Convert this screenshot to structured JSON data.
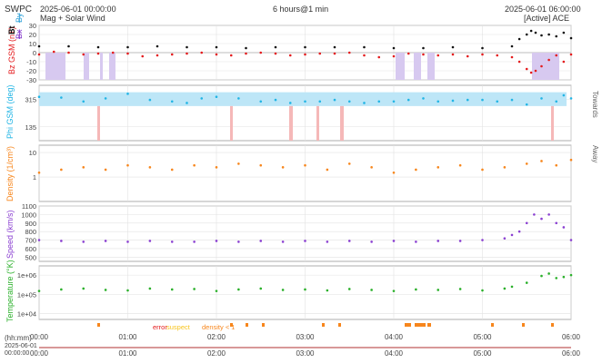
{
  "header": {
    "org": "SWPC",
    "start": "2025-06-01 00:00:00",
    "subtitle": "Mag + Solar Wind",
    "span": "6 hours@1 min",
    "end": "2025-06-01 06:00:00",
    "source": "[Active] ACE"
  },
  "colors": {
    "bz": "#e41a1c",
    "bt": "#111111",
    "bx": "#7e2ec9",
    "by": "#2ca0d8",
    "phi": "#22b5e5",
    "phi_band": "#bde6f7",
    "towards": "#f5b8b8",
    "density": "#f7861c",
    "speed": "#8a3fd1",
    "temperature": "#2ab02a",
    "bz_south": "#d7c9f0",
    "grid": "#e2e2e2",
    "axis": "#9a9a9a"
  },
  "legend": {
    "error": "error",
    "suspect": "suspect",
    "density": "density < 1",
    "error_color": "#e41a1c",
    "suspect_color": "#f7c41c",
    "density_color": "#f7861c"
  },
  "time_axis": {
    "label": "(hh:mm)",
    "ticks": [
      "00:00",
      "01:00",
      "02:00",
      "03:00",
      "04:00",
      "05:00",
      "06:00"
    ],
    "date_line1": "2025-06-01",
    "date_line2": "00:00:00"
  },
  "chart_data": [
    {
      "type": "scatter",
      "panel": "mag",
      "ylabel_parts": [
        "Bz GSM (nT)",
        "Bt",
        "Bx",
        "By"
      ],
      "yticks": [
        30,
        20,
        10,
        0,
        -10,
        -20,
        -30
      ],
      "ylim": [
        -30,
        30
      ],
      "x_unit": "minutes since 2025-06-01 00:00",
      "series": [
        {
          "name": "Bt",
          "x": [
            0,
            20,
            40,
            60,
            80,
            100,
            120,
            140,
            160,
            180,
            200,
            220,
            240,
            260,
            280,
            300,
            320,
            325,
            330,
            333,
            336,
            340,
            345,
            350,
            355,
            360
          ],
          "y": [
            7,
            7,
            6,
            6,
            7,
            6,
            6,
            5,
            6,
            6,
            6,
            6,
            5,
            5,
            6,
            5,
            7,
            15,
            20,
            24,
            22,
            19,
            20,
            18,
            22,
            16
          ]
        },
        {
          "name": "Bz GSM",
          "x": [
            0,
            10,
            20,
            30,
            40,
            50,
            60,
            70,
            80,
            90,
            100,
            110,
            120,
            130,
            140,
            150,
            160,
            170,
            180,
            190,
            200,
            210,
            220,
            230,
            240,
            250,
            260,
            270,
            280,
            290,
            300,
            310,
            320,
            325,
            330,
            333,
            336,
            340,
            345,
            350,
            355,
            360
          ],
          "y": [
            -2,
            1,
            0,
            -2,
            -1,
            0,
            -1,
            -4,
            -3,
            -2,
            -1,
            0,
            -2,
            -3,
            -1,
            0,
            -1,
            -3,
            -2,
            -1,
            -1,
            0,
            -3,
            -5,
            -4,
            -1,
            -2,
            -3,
            -2,
            -4,
            -2,
            -3,
            -5,
            -10,
            -18,
            -22,
            -20,
            -15,
            -8,
            -3,
            -10,
            -2
          ]
        }
      ]
    },
    {
      "type": "scatter",
      "panel": "phi",
      "ylabel": "Phi GSM (deg)",
      "side_labels": [
        "Away",
        "Towards"
      ],
      "yticks": [
        315,
        135
      ],
      "ylim": [
        45,
        405
      ],
      "series": [
        {
          "name": "Phi GSM",
          "x": [
            0,
            15,
            30,
            45,
            60,
            75,
            90,
            100,
            110,
            120,
            135,
            150,
            160,
            170,
            180,
            190,
            200,
            210,
            220,
            230,
            240,
            250,
            260,
            270,
            280,
            290,
            300,
            310,
            320,
            330,
            340,
            350,
            355,
            360
          ],
          "y": [
            330,
            325,
            300,
            320,
            350,
            310,
            300,
            290,
            320,
            330,
            320,
            300,
            310,
            290,
            300,
            300,
            310,
            300,
            290,
            300,
            300,
            310,
            320,
            300,
            305,
            310,
            310,
            300,
            310,
            280,
            320,
            300,
            340,
            320
          ]
        }
      ]
    },
    {
      "type": "scatter",
      "panel": "density",
      "ylabel": "Density (1/cm³)",
      "yscale": "log",
      "yticks": [
        10,
        1
      ],
      "ylim": [
        0.1,
        20
      ],
      "series": [
        {
          "name": "Density",
          "x": [
            0,
            15,
            30,
            45,
            60,
            75,
            90,
            105,
            120,
            135,
            150,
            165,
            180,
            195,
            210,
            225,
            240,
            255,
            270,
            285,
            300,
            315,
            330,
            340,
            350,
            360
          ],
          "y": [
            1.5,
            2.0,
            2.5,
            2.0,
            3.0,
            2.5,
            2.0,
            3.0,
            2.5,
            3.5,
            3.0,
            2.5,
            3.0,
            2.0,
            3.5,
            2.5,
            1.5,
            2.0,
            2.5,
            3.0,
            2.0,
            2.5,
            3.5,
            4.5,
            3.0,
            5.0
          ]
        }
      ]
    },
    {
      "type": "scatter",
      "panel": "speed",
      "ylabel": "Speed (km/s)",
      "yticks": [
        1100,
        1000,
        900,
        800,
        700,
        600,
        500
      ],
      "ylim": [
        450,
        1100
      ],
      "series": [
        {
          "name": "Speed",
          "x": [
            0,
            15,
            30,
            45,
            60,
            75,
            90,
            105,
            120,
            135,
            150,
            165,
            180,
            195,
            210,
            225,
            240,
            255,
            270,
            285,
            300,
            315,
            320,
            325,
            330,
            335,
            340,
            345,
            350,
            355,
            360
          ],
          "y": [
            700,
            690,
            680,
            690,
            680,
            690,
            680,
            680,
            690,
            680,
            690,
            680,
            690,
            680,
            690,
            680,
            690,
            680,
            690,
            690,
            700,
            720,
            760,
            800,
            900,
            1000,
            950,
            1000,
            900,
            850,
            700
          ]
        }
      ]
    },
    {
      "type": "scatter",
      "panel": "temperature",
      "ylabel": "Temperature (°K)",
      "yscale": "log",
      "yticks_labels": [
        "1e+06",
        "1e+05",
        "1e+04"
      ],
      "yticks": [
        1000000,
        100000,
        10000
      ],
      "ylim": [
        5000,
        3000000
      ],
      "series": [
        {
          "name": "Temperature",
          "x": [
            0,
            15,
            30,
            45,
            60,
            75,
            90,
            105,
            120,
            135,
            150,
            165,
            180,
            195,
            210,
            225,
            240,
            255,
            270,
            285,
            300,
            315,
            320,
            330,
            340,
            345,
            350,
            355,
            360
          ],
          "y": [
            150000,
            180000,
            200000,
            170000,
            160000,
            200000,
            180000,
            190000,
            150000,
            180000,
            200000,
            170000,
            180000,
            160000,
            190000,
            170000,
            150000,
            180000,
            170000,
            190000,
            160000,
            200000,
            250000,
            400000,
            900000,
            1200000,
            700000,
            800000,
            1000000
          ]
        }
      ]
    }
  ]
}
